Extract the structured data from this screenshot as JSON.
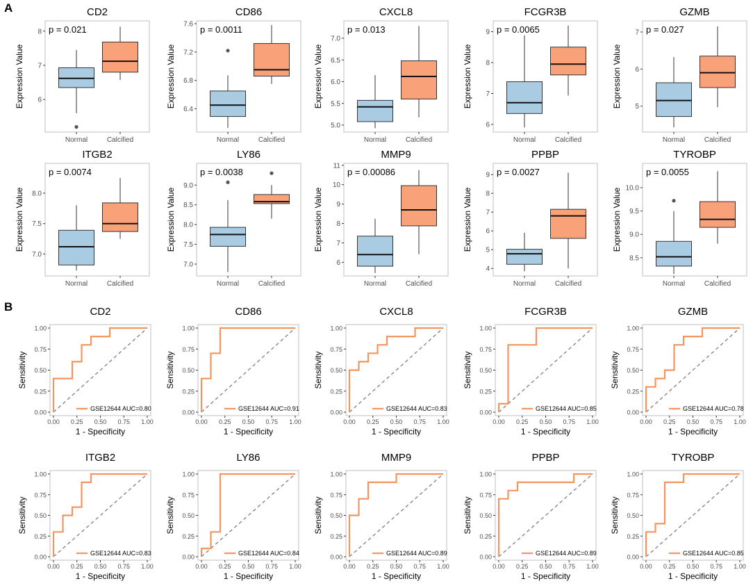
{
  "panels": {
    "a": "A",
    "b": "B"
  },
  "colors": {
    "normal": "#a9cce3",
    "calcified": "#f9a27a",
    "roc": "#f4955f",
    "diagonal": "#7f7f7f",
    "frame": "#bfbfbf",
    "axis_text": "#4d4d4d"
  },
  "chart_data": [
    {
      "type": "box",
      "title": "CD2",
      "pvalue": "p = 0.021",
      "ylabel": "Expression Value",
      "categories": [
        "Normal",
        "Calcified"
      ],
      "ylim": [
        5.05,
        8.3
      ],
      "yticks": [
        6,
        7,
        8
      ],
      "boxes": [
        {
          "name": "Normal",
          "min": 5.6,
          "q1": 6.35,
          "median": 6.62,
          "q3": 6.93,
          "max": 7.45,
          "outliers": [
            5.2
          ]
        },
        {
          "name": "Calcified",
          "min": 6.57,
          "q1": 6.8,
          "median": 7.12,
          "q3": 7.68,
          "max": 8.13,
          "outliers": []
        }
      ]
    },
    {
      "type": "box",
      "title": "CD86",
      "pvalue": "p = 0.0011",
      "ylabel": "Expression Value",
      "categories": [
        "Normal",
        "Calcified"
      ],
      "ylim": [
        6.07,
        7.64
      ],
      "yticks": [
        6.4,
        6.8,
        7.2,
        7.6
      ],
      "boxes": [
        {
          "name": "Normal",
          "min": 6.13,
          "q1": 6.29,
          "median": 6.45,
          "q3": 6.65,
          "max": 6.87,
          "outliers": [
            7.22
          ]
        },
        {
          "name": "Calcified",
          "min": 6.75,
          "q1": 6.86,
          "median": 6.95,
          "q3": 7.32,
          "max": 7.58,
          "outliers": []
        }
      ]
    },
    {
      "type": "box",
      "title": "CXCL8",
      "pvalue": "p = 0.013",
      "ylabel": "Expression Value",
      "categories": [
        "Normal",
        "Calcified"
      ],
      "ylim": [
        4.84,
        7.4
      ],
      "yticks": [
        5.0,
        5.5,
        6.0,
        6.5,
        7.0
      ],
      "yticklabels": [
        "5.0",
        "5.5",
        "6.0",
        "6.5",
        "7.0"
      ],
      "boxes": [
        {
          "name": "Normal",
          "min": 4.93,
          "q1": 5.08,
          "median": 5.42,
          "q3": 5.57,
          "max": 6.15,
          "outliers": []
        },
        {
          "name": "Calcified",
          "min": 5.18,
          "q1": 5.6,
          "median": 6.12,
          "q3": 6.48,
          "max": 7.28,
          "outliers": []
        }
      ]
    },
    {
      "type": "box",
      "title": "FCGR3B",
      "pvalue": "p = 0.0065",
      "ylabel": "Expression Value",
      "categories": [
        "Normal",
        "Calcified"
      ],
      "ylim": [
        5.75,
        9.35
      ],
      "yticks": [
        6,
        7,
        8,
        9
      ],
      "boxes": [
        {
          "name": "Normal",
          "min": 5.9,
          "q1": 6.35,
          "median": 6.7,
          "q3": 7.38,
          "max": 8.88,
          "outliers": []
        },
        {
          "name": "Calcified",
          "min": 6.93,
          "q1": 7.6,
          "median": 7.95,
          "q3": 8.5,
          "max": 9.2,
          "outliers": []
        }
      ]
    },
    {
      "type": "box",
      "title": "GZMB",
      "pvalue": "p = 0.027",
      "ylabel": "Expression Value",
      "categories": [
        "Normal",
        "Calcified"
      ],
      "ylim": [
        4.3,
        7.3
      ],
      "yticks": [
        5,
        6,
        7
      ],
      "boxes": [
        {
          "name": "Normal",
          "min": 4.43,
          "q1": 4.72,
          "median": 5.15,
          "q3": 5.63,
          "max": 6.32,
          "outliers": []
        },
        {
          "name": "Calcified",
          "min": 4.97,
          "q1": 5.5,
          "median": 5.9,
          "q3": 6.35,
          "max": 7.15,
          "outliers": []
        }
      ]
    },
    {
      "type": "box",
      "title": "ITGB2",
      "pvalue": "p = 0.0074",
      "ylabel": "Expression Value",
      "categories": [
        "Normal",
        "Calcified"
      ],
      "ylim": [
        6.64,
        8.49
      ],
      "yticks": [
        7.0,
        7.5,
        8.0
      ],
      "yticklabels": [
        "7.0",
        "7.5",
        "8.0"
      ],
      "boxes": [
        {
          "name": "Normal",
          "min": 6.73,
          "q1": 6.82,
          "median": 7.12,
          "q3": 7.39,
          "max": 7.8,
          "outliers": []
        },
        {
          "name": "Calcified",
          "min": 7.25,
          "q1": 7.37,
          "median": 7.5,
          "q3": 7.84,
          "max": 8.25,
          "outliers": []
        }
      ]
    },
    {
      "type": "box",
      "title": "LY86",
      "pvalue": "p = 0.0038",
      "ylabel": "Expression Value",
      "categories": [
        "Normal",
        "Calcified"
      ],
      "ylim": [
        6.7,
        9.55
      ],
      "yticks": [
        7.0,
        7.5,
        8.0,
        8.5,
        9.0
      ],
      "yticklabels": [
        "7.0",
        "7.5",
        "8.0",
        "8.5",
        "9.0"
      ],
      "boxes": [
        {
          "name": "Normal",
          "min": 6.8,
          "q1": 7.45,
          "median": 7.75,
          "q3": 7.93,
          "max": 8.62,
          "outliers": [
            9.07
          ]
        },
        {
          "name": "Calcified",
          "min": 8.15,
          "q1": 8.53,
          "median": 8.58,
          "q3": 8.76,
          "max": 9.0,
          "outliers": [
            9.3
          ]
        }
      ]
    },
    {
      "type": "box",
      "title": "MMP9",
      "pvalue": "p = 0.00086",
      "ylabel": "Expression Value",
      "categories": [
        "Normal",
        "Calcified"
      ],
      "ylim": [
        5.3,
        11.1
      ],
      "yticks": [
        6,
        7,
        8,
        9,
        10,
        11
      ],
      "boxes": [
        {
          "name": "Normal",
          "min": 5.45,
          "q1": 5.8,
          "median": 6.4,
          "q3": 7.35,
          "max": 8.25,
          "outliers": []
        },
        {
          "name": "Calcified",
          "min": 6.42,
          "q1": 7.88,
          "median": 8.7,
          "q3": 9.95,
          "max": 10.75,
          "outliers": []
        }
      ]
    },
    {
      "type": "box",
      "title": "PPBP",
      "pvalue": "p = 0.0027",
      "ylabel": "Expression Value",
      "categories": [
        "Normal",
        "Calcified"
      ],
      "ylim": [
        3.6,
        9.6
      ],
      "yticks": [
        4,
        5,
        6,
        7,
        8,
        9
      ],
      "boxes": [
        {
          "name": "Normal",
          "min": 3.85,
          "q1": 4.22,
          "median": 4.78,
          "q3": 5.02,
          "max": 5.9,
          "outliers": []
        },
        {
          "name": "Calcified",
          "min": 4.0,
          "q1": 5.6,
          "median": 6.8,
          "q3": 7.15,
          "max": 9.1,
          "outliers": []
        }
      ]
    },
    {
      "type": "box",
      "title": "TYROBP",
      "pvalue": "p = 0.0055",
      "ylabel": "Expression Value",
      "categories": [
        "Normal",
        "Calcified"
      ],
      "ylim": [
        8.11,
        10.52
      ],
      "yticks": [
        8.5,
        9.0,
        9.5,
        10.0
      ],
      "yticklabels": [
        "8.5",
        "9.0",
        "9.5",
        "10.0"
      ],
      "boxes": [
        {
          "name": "Normal",
          "min": 8.15,
          "q1": 8.32,
          "median": 8.52,
          "q3": 8.85,
          "max": 9.5,
          "outliers": [
            9.72
          ]
        },
        {
          "name": "Calcified",
          "min": 8.8,
          "q1": 9.15,
          "median": 9.32,
          "q3": 9.7,
          "max": 10.35,
          "outliers": []
        }
      ]
    },
    {
      "type": "roc",
      "title": "CD2",
      "legend": "GSE12644 AUC=0.80",
      "xlabel": "1 - Specificity",
      "ylabel": "Sensitivity",
      "xlim": [
        0,
        1
      ],
      "ylim": [
        0,
        1
      ],
      "x": [
        0,
        0,
        0.2,
        0.2,
        0.3,
        0.3,
        0.4,
        0.4,
        0.6,
        0.6,
        1
      ],
      "y": [
        0,
        0.4,
        0.4,
        0.6,
        0.6,
        0.8,
        0.8,
        0.9,
        0.9,
        1,
        1
      ]
    },
    {
      "type": "roc",
      "title": "CD86",
      "legend": "GSE12644 AUC=0.91",
      "xlabel": "1 - Specificity",
      "ylabel": "Sensitivity",
      "xlim": [
        0,
        1
      ],
      "ylim": [
        0,
        1
      ],
      "x": [
        0,
        0,
        0.1,
        0.1,
        0.2,
        0.2,
        1
      ],
      "y": [
        0,
        0.4,
        0.4,
        0.7,
        0.7,
        1,
        1
      ]
    },
    {
      "type": "roc",
      "title": "CXCL8",
      "legend": "GSE12644 AUC=0.83",
      "xlabel": "1 - Specificity",
      "ylabel": "Sensitivity",
      "xlim": [
        0,
        1
      ],
      "ylim": [
        0,
        1
      ],
      "x": [
        0,
        0,
        0.1,
        0.1,
        0.2,
        0.2,
        0.3,
        0.3,
        0.4,
        0.4,
        0.7,
        0.7,
        1
      ],
      "y": [
        0,
        0.5,
        0.5,
        0.6,
        0.6,
        0.7,
        0.7,
        0.8,
        0.8,
        0.9,
        0.9,
        1,
        1
      ]
    },
    {
      "type": "roc",
      "title": "FCGR3B",
      "legend": "GSE12644 AUC=0.85",
      "xlabel": "1 - Specificity",
      "ylabel": "Sensitivity",
      "xlim": [
        0,
        1
      ],
      "ylim": [
        0,
        1
      ],
      "x": [
        0,
        0,
        0.1,
        0.1,
        0.4,
        0.4,
        1
      ],
      "y": [
        0,
        0.1,
        0.1,
        0.8,
        0.8,
        1,
        1
      ]
    },
    {
      "type": "roc",
      "title": "GZMB",
      "legend": "GSE12644 AUC=0.78",
      "xlabel": "1 - Specificity",
      "ylabel": "Sensitivity",
      "xlim": [
        0,
        1
      ],
      "ylim": [
        0,
        1
      ],
      "x": [
        0,
        0,
        0.1,
        0.1,
        0.2,
        0.2,
        0.3,
        0.3,
        0.4,
        0.4,
        0.6,
        0.6,
        1
      ],
      "y": [
        0,
        0.3,
        0.3,
        0.4,
        0.4,
        0.5,
        0.5,
        0.8,
        0.8,
        0.9,
        0.9,
        1,
        1
      ]
    },
    {
      "type": "roc",
      "title": "ITGB2",
      "legend": "GSE12644 AUC=0.83",
      "xlabel": "1 - Specificity",
      "ylabel": "Sensitivity",
      "xlim": [
        0,
        1
      ],
      "ylim": [
        0,
        1
      ],
      "x": [
        0,
        0,
        0.1,
        0.1,
        0.2,
        0.2,
        0.3,
        0.3,
        0.4,
        0.4,
        1
      ],
      "y": [
        0,
        0.3,
        0.3,
        0.5,
        0.5,
        0.6,
        0.6,
        0.9,
        0.9,
        1,
        1
      ]
    },
    {
      "type": "roc",
      "title": "LY86",
      "legend": "GSE12644 AUC=0.84",
      "xlabel": "1 - Specificity",
      "ylabel": "Sensitivity",
      "xlim": [
        0,
        1
      ],
      "ylim": [
        0,
        1
      ],
      "x": [
        0,
        0,
        0.1,
        0.1,
        0.2,
        0.2,
        1
      ],
      "y": [
        0,
        0.1,
        0.1,
        0.3,
        0.3,
        1,
        1
      ]
    },
    {
      "type": "roc",
      "title": "MMP9",
      "legend": "GSE12644 AUC=0.89",
      "xlabel": "1 - Specificity",
      "ylabel": "Sensitivity",
      "xlim": [
        0,
        1
      ],
      "ylim": [
        0,
        1
      ],
      "x": [
        0,
        0,
        0.1,
        0.1,
        0.2,
        0.2,
        0.5,
        0.5,
        1
      ],
      "y": [
        0,
        0.5,
        0.5,
        0.7,
        0.7,
        0.9,
        0.9,
        1,
        1
      ]
    },
    {
      "type": "roc",
      "title": "PPBP",
      "legend": "GSE12644 AUC=0.89",
      "xlabel": "1 - Specificity",
      "ylabel": "Sensitivity",
      "xlim": [
        0,
        1
      ],
      "ylim": [
        0,
        1
      ],
      "x": [
        0,
        0,
        0.1,
        0.1,
        0.2,
        0.2,
        0.8,
        0.8,
        1
      ],
      "y": [
        0,
        0.7,
        0.7,
        0.8,
        0.8,
        0.9,
        0.9,
        1,
        1
      ]
    },
    {
      "type": "roc",
      "title": "TYROBP",
      "legend": "GSE12644 AUC=0.85",
      "xlabel": "1 - Specificity",
      "ylabel": "Sensitivity",
      "xlim": [
        0,
        1
      ],
      "ylim": [
        0,
        1
      ],
      "x": [
        0,
        0,
        0.1,
        0.1,
        0.2,
        0.2,
        0.4,
        0.4,
        1
      ],
      "y": [
        0,
        0.3,
        0.3,
        0.4,
        0.4,
        0.9,
        0.9,
        1,
        1
      ]
    }
  ]
}
